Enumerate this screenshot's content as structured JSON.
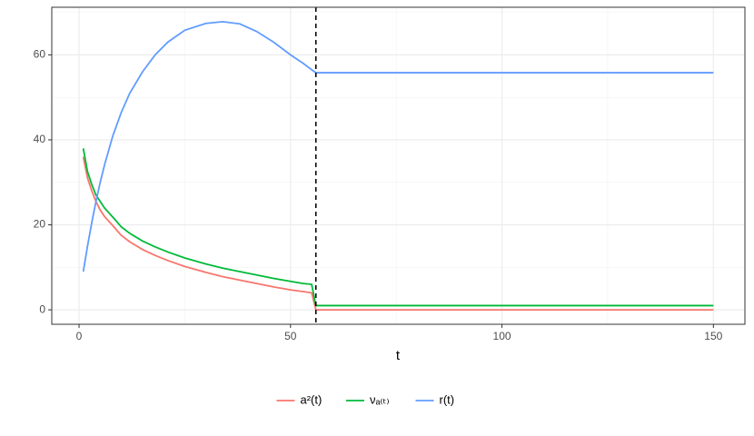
{
  "chart_data": {
    "type": "line",
    "x_label": "t",
    "x": [
      1,
      2,
      3,
      4,
      5,
      6,
      8,
      10,
      12,
      15,
      18,
      21,
      25,
      30,
      34,
      38,
      42,
      46,
      50,
      53,
      55,
      56,
      150
    ],
    "series": [
      {
        "name": "a²(t)",
        "color": "#F8766D",
        "values": [
          36,
          31,
          28,
          25.5,
          23.5,
          22,
          19.8,
          17.5,
          16,
          14.2,
          12.8,
          11.6,
          10.2,
          8.8,
          7.8,
          7,
          6.2,
          5.4,
          4.7,
          4.3,
          4,
          0,
          0
        ]
      },
      {
        "name": "νₐ₍ₜ₎",
        "color": "#00BA38",
        "values": [
          38,
          32.5,
          29.5,
          27,
          25.5,
          24,
          21.8,
          19.5,
          18,
          16.2,
          14.8,
          13.6,
          12.2,
          10.8,
          9.8,
          9,
          8.2,
          7.4,
          6.7,
          6.2,
          6,
          1,
          1
        ]
      },
      {
        "name": "r(t)",
        "color": "#619CFF",
        "values": [
          9,
          15,
          20.5,
          25.5,
          30,
          34,
          41,
          46.5,
          51,
          56,
          60,
          63,
          65.8,
          67.4,
          67.8,
          67.3,
          65.5,
          63,
          60,
          58,
          56.5,
          55.8,
          55.8
        ]
      }
    ],
    "vline": 56,
    "xlim": [
      -6.45,
      157.45
    ],
    "xticks": [
      0,
      50,
      100,
      150
    ],
    "xminor": [
      25,
      75,
      125
    ],
    "ylim": [
      -3.4,
      71.2
    ],
    "yticks": [
      0,
      20,
      40,
      60
    ],
    "yminor": [
      10,
      30,
      50,
      70
    ],
    "grid": true,
    "legend": "bottom"
  }
}
